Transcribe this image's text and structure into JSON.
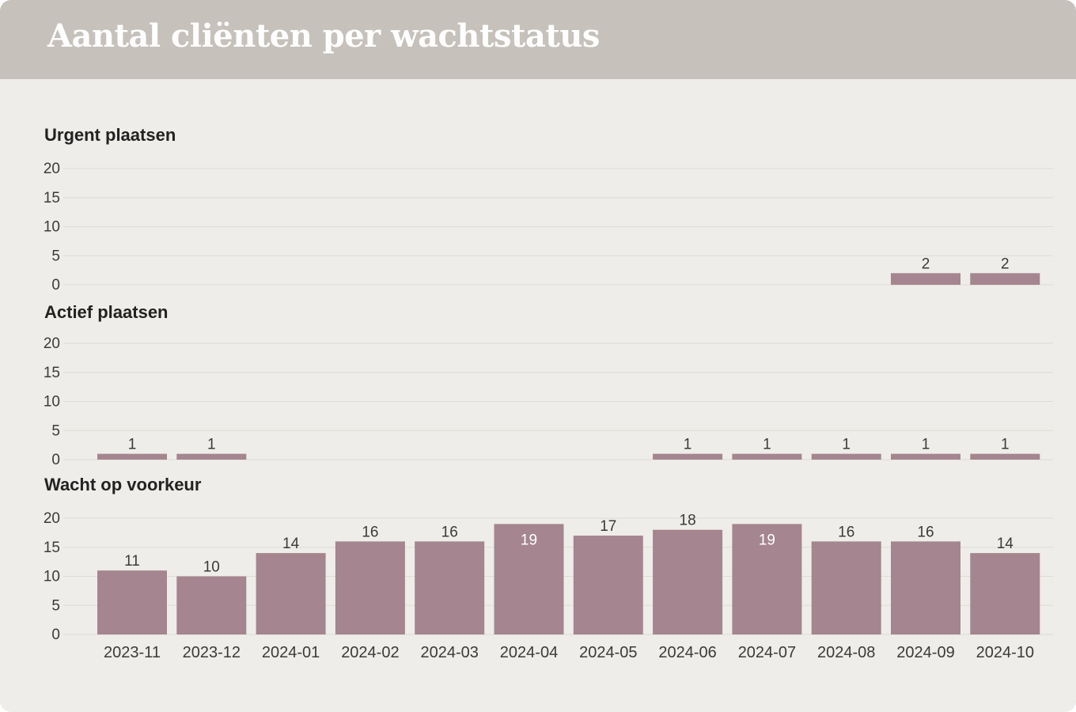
{
  "header": {
    "title": "Aantal cliënten per wachtstatus"
  },
  "colors": {
    "bar": "#a5858f",
    "header_bg": "#c6c1bb",
    "card_bg": "#eeede9",
    "label_dark": "#3a3a3a",
    "label_inside": "#ffffff"
  },
  "chart_data": {
    "type": "bar",
    "layout": "small-multiples",
    "categories": [
      "2023-11",
      "2023-12",
      "2024-01",
      "2024-02",
      "2024-03",
      "2024-04",
      "2024-05",
      "2024-06",
      "2024-07",
      "2024-08",
      "2024-09",
      "2024-10"
    ],
    "ylim": [
      0,
      20
    ],
    "yticks": [
      0,
      5,
      10,
      15,
      20
    ],
    "grid": true,
    "series": [
      {
        "name": "Urgent plaatsen",
        "values": [
          null,
          null,
          null,
          null,
          null,
          null,
          null,
          null,
          null,
          null,
          2,
          2
        ]
      },
      {
        "name": "Actief plaatsen",
        "values": [
          1,
          1,
          null,
          null,
          null,
          null,
          null,
          1,
          1,
          1,
          1,
          1
        ]
      },
      {
        "name": "Wacht op voorkeur",
        "values": [
          11,
          10,
          14,
          16,
          16,
          19,
          17,
          18,
          19,
          16,
          16,
          14
        ]
      }
    ]
  }
}
